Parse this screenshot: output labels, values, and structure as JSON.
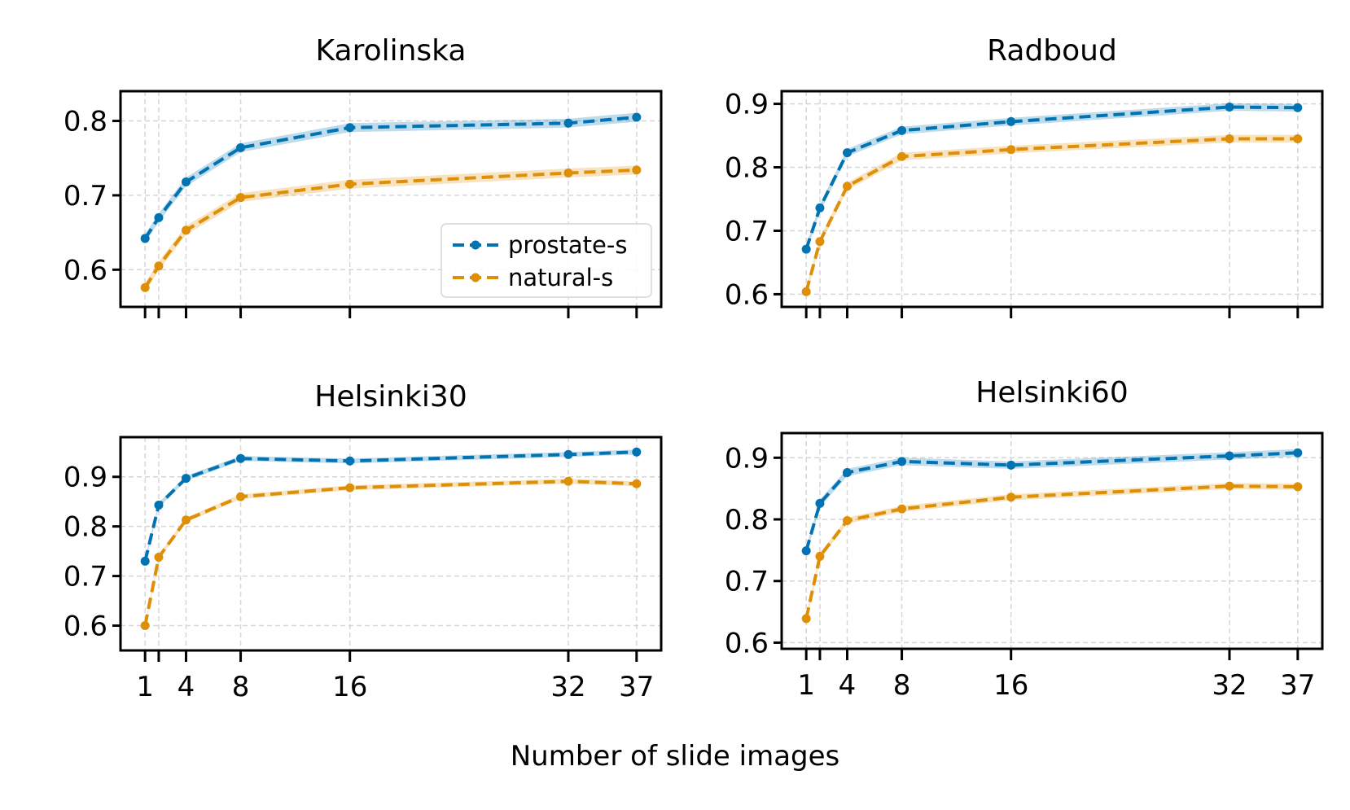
{
  "chart_data": {
    "type": "line",
    "xlabel": "Number of slide images",
    "x": [
      1,
      2,
      4,
      8,
      16,
      32,
      37
    ],
    "xticks": [
      1,
      4,
      8,
      16,
      32,
      37
    ],
    "legend": {
      "placement": "lower-right",
      "panel": 0,
      "entries": [
        "prostate-s",
        "natural-s"
      ]
    },
    "grid": true,
    "colors": {
      "prostate-s": "#0173b2",
      "natural-s": "#de8f05"
    },
    "panels": [
      {
        "title": "Karolinska",
        "ylim": [
          0.55,
          0.84
        ],
        "yticks": [
          0.6,
          0.7,
          0.8
        ],
        "series": [
          {
            "name": "prostate-s",
            "values": [
              0.642,
              0.67,
              0.718,
              0.764,
              0.791,
              0.797,
              0.805
            ],
            "band": 0.006
          },
          {
            "name": "natural-s",
            "values": [
              0.576,
              0.605,
              0.653,
              0.697,
              0.715,
              0.73,
              0.734
            ],
            "band": 0.006
          }
        ]
      },
      {
        "title": "Radboud",
        "ylim": [
          0.58,
          0.92
        ],
        "yticks": [
          0.6,
          0.7,
          0.8,
          0.9
        ],
        "series": [
          {
            "name": "prostate-s",
            "values": [
              0.671,
              0.736,
              0.823,
              0.858,
              0.872,
              0.895,
              0.894
            ],
            "band": 0.006
          },
          {
            "name": "natural-s",
            "values": [
              0.604,
              0.683,
              0.77,
              0.817,
              0.828,
              0.845,
              0.845
            ],
            "band": 0.006
          }
        ]
      },
      {
        "title": "Helsinki30",
        "ylim": [
          0.55,
          0.98
        ],
        "yticks": [
          0.6,
          0.7,
          0.8,
          0.9
        ],
        "series": [
          {
            "name": "prostate-s",
            "values": [
              0.73,
              0.843,
              0.897,
              0.937,
              0.932,
              0.945,
              0.95
            ],
            "band": 0.005
          },
          {
            "name": "natural-s",
            "values": [
              0.6,
              0.738,
              0.813,
              0.86,
              0.878,
              0.891,
              0.886
            ],
            "band": 0.005
          }
        ]
      },
      {
        "title": "Helsinki60",
        "ylim": [
          0.59,
          0.94
        ],
        "yticks": [
          0.6,
          0.7,
          0.8,
          0.9
        ],
        "series": [
          {
            "name": "prostate-s",
            "values": [
              0.749,
              0.826,
              0.876,
              0.894,
              0.888,
              0.903,
              0.908
            ],
            "band": 0.006
          },
          {
            "name": "natural-s",
            "values": [
              0.639,
              0.74,
              0.798,
              0.817,
              0.836,
              0.854,
              0.853
            ],
            "band": 0.005
          }
        ]
      }
    ]
  }
}
